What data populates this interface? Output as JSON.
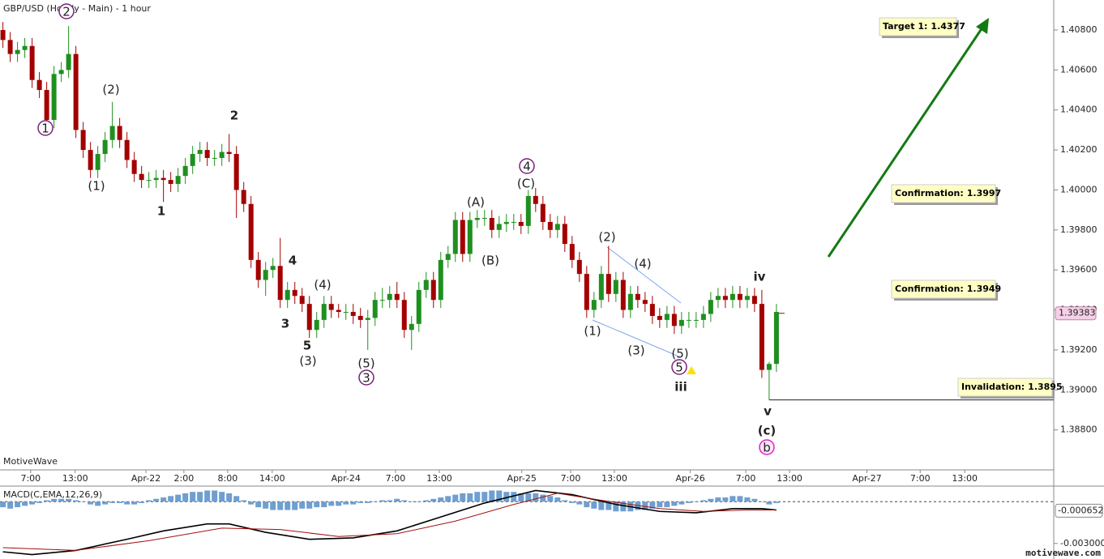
{
  "chart_data": {
    "type": "candlestick",
    "title": "GBP/USD (Hourly - Main) - 1 hour",
    "watermark": "MotiveWave",
    "site": "motivewave.com",
    "colors": {
      "up": "#1f8f1f",
      "down": "#a30000"
    },
    "candles": [
      [
        1.408,
        1.4084,
        1.4071,
        1.4075
      ],
      [
        1.4075,
        1.4079,
        1.4064,
        1.4068
      ],
      [
        1.4068,
        1.4074,
        1.4064,
        1.407
      ],
      [
        1.407,
        1.4076,
        1.4066,
        1.4072
      ],
      [
        1.4072,
        1.4076,
        1.4051,
        1.4055
      ],
      [
        1.4055,
        1.4059,
        1.4046,
        1.405
      ],
      [
        1.405,
        1.4054,
        1.4031,
        1.4035
      ],
      [
        1.4035,
        1.4062,
        1.4031,
        1.4058
      ],
      [
        1.4058,
        1.4064,
        1.4054,
        1.406
      ],
      [
        1.406,
        1.4082,
        1.4056,
        1.4068
      ],
      [
        1.4068,
        1.4072,
        1.4026,
        1.403
      ],
      [
        1.403,
        1.4034,
        1.4016,
        1.402
      ],
      [
        1.402,
        1.4024,
        1.4006,
        1.401
      ],
      [
        1.401,
        1.4022,
        1.4006,
        1.4018
      ],
      [
        1.4018,
        1.4029,
        1.4014,
        1.4025
      ],
      [
        1.4025,
        1.4044,
        1.4021,
        1.4032
      ],
      [
        1.4032,
        1.4036,
        1.4021,
        1.4025
      ],
      [
        1.4025,
        1.4029,
        1.4011,
        1.4015
      ],
      [
        1.4015,
        1.4019,
        1.4004,
        1.4008
      ],
      [
        1.4008,
        1.4012,
        1.4001,
        1.4005
      ],
      [
        1.4005,
        1.4009,
        1.4001,
        1.4005
      ],
      [
        1.4005,
        1.401,
        1.4001,
        1.4006
      ],
      [
        1.4006,
        1.401,
        1.3994,
        1.4005
      ],
      [
        1.4005,
        1.4009,
        1.3999,
        1.4003
      ],
      [
        1.4003,
        1.4011,
        1.3999,
        1.4007
      ],
      [
        1.4007,
        1.4016,
        1.4003,
        1.4012
      ],
      [
        1.4012,
        1.4022,
        1.4008,
        1.4018
      ],
      [
        1.4018,
        1.4024,
        1.4014,
        1.402
      ],
      [
        1.402,
        1.4024,
        1.4012,
        1.4016
      ],
      [
        1.4016,
        1.402,
        1.4012,
        1.4016
      ],
      [
        1.4016,
        1.4023,
        1.4012,
        1.4019
      ],
      [
        1.4019,
        1.4028,
        1.4014,
        1.4018
      ],
      [
        1.4018,
        1.4022,
        1.3986,
        1.4
      ],
      [
        1.4,
        1.4004,
        1.3989,
        1.3993
      ],
      [
        1.3993,
        1.3997,
        1.3961,
        1.3965
      ],
      [
        1.3965,
        1.3969,
        1.3951,
        1.3955
      ],
      [
        1.3955,
        1.3964,
        1.3947,
        1.396
      ],
      [
        1.396,
        1.3966,
        1.3956,
        1.3962
      ],
      [
        1.3962,
        1.3976,
        1.3941,
        1.3945
      ],
      [
        1.3945,
        1.3954,
        1.3941,
        1.395
      ],
      [
        1.395,
        1.3954,
        1.3943,
        1.3947
      ],
      [
        1.3947,
        1.3951,
        1.3939,
        1.3943
      ],
      [
        1.3943,
        1.3947,
        1.3926,
        1.393
      ],
      [
        1.393,
        1.3939,
        1.3926,
        1.3935
      ],
      [
        1.3935,
        1.3947,
        1.3931,
        1.3943
      ],
      [
        1.3943,
        1.3947,
        1.3936,
        1.394
      ],
      [
        1.394,
        1.3943,
        1.3936,
        1.3939
      ],
      [
        1.3939,
        1.3943,
        1.3935,
        1.3939
      ],
      [
        1.3939,
        1.3943,
        1.3933,
        1.3937
      ],
      [
        1.3937,
        1.3941,
        1.3931,
        1.3935
      ],
      [
        1.3935,
        1.394,
        1.392,
        1.3936
      ],
      [
        1.3936,
        1.3949,
        1.3932,
        1.3945
      ],
      [
        1.3945,
        1.3951,
        1.3941,
        1.3945
      ],
      [
        1.3945,
        1.3952,
        1.3941,
        1.3948
      ],
      [
        1.3948,
        1.3954,
        1.3941,
        1.3945
      ],
      [
        1.3945,
        1.3949,
        1.3926,
        1.393
      ],
      [
        1.393,
        1.3937,
        1.392,
        1.3933
      ],
      [
        1.3933,
        1.3954,
        1.3929,
        1.395
      ],
      [
        1.395,
        1.3959,
        1.3946,
        1.3955
      ],
      [
        1.3955,
        1.3959,
        1.3941,
        1.3945
      ],
      [
        1.3945,
        1.3969,
        1.3941,
        1.3965
      ],
      [
        1.3965,
        1.3972,
        1.3961,
        1.3968
      ],
      [
        1.3968,
        1.3989,
        1.3964,
        1.3985
      ],
      [
        1.3985,
        1.3989,
        1.3964,
        1.3968
      ],
      [
        1.3968,
        1.3989,
        1.3964,
        1.3985
      ],
      [
        1.3985,
        1.399,
        1.3981,
        1.3986
      ],
      [
        1.3986,
        1.399,
        1.3982,
        1.3986
      ],
      [
        1.3986,
        1.399,
        1.3976,
        1.398
      ],
      [
        1.398,
        1.3987,
        1.3976,
        1.3983
      ],
      [
        1.3983,
        1.3988,
        1.3979,
        1.3984
      ],
      [
        1.3984,
        1.3988,
        1.398,
        1.3984
      ],
      [
        1.3984,
        1.3988,
        1.3978,
        1.3982
      ],
      [
        1.3982,
        1.4,
        1.3978,
        1.3997
      ],
      [
        1.3997,
        1.4001,
        1.3989,
        1.3993
      ],
      [
        1.3993,
        1.3997,
        1.398,
        1.3984
      ],
      [
        1.3984,
        1.3988,
        1.3976,
        1.398
      ],
      [
        1.398,
        1.3987,
        1.3976,
        1.3983
      ],
      [
        1.3983,
        1.3987,
        1.3969,
        1.3973
      ],
      [
        1.3973,
        1.3977,
        1.3961,
        1.3965
      ],
      [
        1.3965,
        1.3969,
        1.3954,
        1.3958
      ],
      [
        1.3958,
        1.3962,
        1.3936,
        1.394
      ],
      [
        1.394,
        1.3949,
        1.3936,
        1.3945
      ],
      [
        1.3945,
        1.3962,
        1.3941,
        1.3958
      ],
      [
        1.3958,
        1.3972,
        1.3944,
        1.3948
      ],
      [
        1.3948,
        1.3959,
        1.3944,
        1.3955
      ],
      [
        1.3955,
        1.3959,
        1.3936,
        1.394
      ],
      [
        1.394,
        1.3952,
        1.3936,
        1.3948
      ],
      [
        1.3948,
        1.3952,
        1.3941,
        1.3945
      ],
      [
        1.3945,
        1.3949,
        1.3939,
        1.3943
      ],
      [
        1.3943,
        1.3947,
        1.3933,
        1.3937
      ],
      [
        1.3937,
        1.3941,
        1.3931,
        1.3935
      ],
      [
        1.3935,
        1.3942,
        1.3931,
        1.3938
      ],
      [
        1.3938,
        1.3942,
        1.3928,
        1.3932
      ],
      [
        1.3932,
        1.3939,
        1.3928,
        1.3935
      ],
      [
        1.3935,
        1.3939,
        1.3931,
        1.3935
      ],
      [
        1.3935,
        1.3939,
        1.3931,
        1.3935
      ],
      [
        1.3935,
        1.3942,
        1.3931,
        1.3938
      ],
      [
        1.3938,
        1.3949,
        1.3934,
        1.3945
      ],
      [
        1.3945,
        1.3951,
        1.3941,
        1.3947
      ],
      [
        1.3947,
        1.3951,
        1.3941,
        1.3945
      ],
      [
        1.3945,
        1.3952,
        1.3941,
        1.3948
      ],
      [
        1.3948,
        1.3952,
        1.3941,
        1.3945
      ],
      [
        1.3945,
        1.3951,
        1.3941,
        1.3947
      ],
      [
        1.3947,
        1.3951,
        1.3939,
        1.3943
      ],
      [
        1.3943,
        1.395,
        1.3906,
        1.391
      ],
      [
        1.391,
        1.3914,
        1.3895,
        1.3913
      ],
      [
        1.3913,
        1.3943,
        1.3909,
        1.3939
      ]
    ],
    "xlim": [
      -0.4,
      144
    ],
    "xticks": [
      {
        "value": 3.8,
        "label": "7:00"
      },
      {
        "value": 9.9,
        "label": "13:00"
      },
      {
        "value": 19.6,
        "label": "Apr-22"
      },
      {
        "value": 24.8,
        "label": "2:00"
      },
      {
        "value": 30.8,
        "label": "8:00"
      },
      {
        "value": 36.9,
        "label": "14:00"
      },
      {
        "value": 47,
        "label": "Apr-24"
      },
      {
        "value": 53.8,
        "label": "7:00"
      },
      {
        "value": 59.8,
        "label": "13:00"
      },
      {
        "value": 71.1,
        "label": "Apr-25"
      },
      {
        "value": 77.8,
        "label": "7:00"
      },
      {
        "value": 83.8,
        "label": "13:00"
      },
      {
        "value": 94.2,
        "label": "Apr-26"
      },
      {
        "value": 101.8,
        "label": "7:00"
      },
      {
        "value": 107.8,
        "label": "13:00"
      },
      {
        "value": 118.4,
        "label": "Apr-27"
      },
      {
        "value": 125.7,
        "label": "7:00"
      },
      {
        "value": 131.8,
        "label": "13:00"
      }
    ],
    "ylim": [
      1.386,
      1.4095
    ],
    "yticks": [
      {
        "value": 1.388,
        "label": "1.38800"
      },
      {
        "value": 1.39,
        "label": "1.39000"
      },
      {
        "value": 1.392,
        "label": "1.39200"
      },
      {
        "value": 1.394,
        "label": "1.39400"
      },
      {
        "value": 1.396,
        "label": "1.39600"
      },
      {
        "value": 1.398,
        "label": "1.39800"
      },
      {
        "value": 1.4,
        "label": "1.40000"
      },
      {
        "value": 1.402,
        "label": "1.40200"
      },
      {
        "value": 1.404,
        "label": "1.40400"
      },
      {
        "value": 1.406,
        "label": "1.40600"
      },
      {
        "value": 1.408,
        "label": "1.40800"
      }
    ],
    "last_price": 1.39383,
    "annotations": [
      {
        "text": "2",
        "color": "#7a1f7a",
        "circled": true
      },
      {
        "text": "1",
        "color": "#7a1f7a",
        "circled": true
      },
      {
        "text": "3",
        "color": "#7a1f7a",
        "circled": true
      },
      {
        "text": "4",
        "color": "#7a1f7a",
        "circled": true
      },
      {
        "text": "5",
        "color": "#7a1f7a",
        "circled": true
      },
      {
        "text": "(2)",
        "color": "#3b6fdc"
      },
      {
        "text": "(1)",
        "color": "#3b6fdc"
      },
      {
        "text": "(4)",
        "color": "#3b6fdc"
      },
      {
        "text": "(3)",
        "color": "#3b6fdc"
      },
      {
        "text": "(5)",
        "color": "#3b6fdc"
      },
      {
        "text": "(A)",
        "color": "#3b6fdc"
      },
      {
        "text": "(C)",
        "color": "#3b6fdc"
      },
      {
        "text": "(B)",
        "color": "#3b6fdc"
      },
      {
        "text": "(2)",
        "color": "#3b6fdc"
      },
      {
        "text": "(4)",
        "color": "#3b6fdc"
      },
      {
        "text": "(1)",
        "color": "#3b6fdc"
      },
      {
        "text": "(3)",
        "color": "#3b6fdc"
      },
      {
        "text": "(5)",
        "color": "#3b6fdc"
      },
      {
        "text": "2",
        "color": "#e01515"
      },
      {
        "text": "1",
        "color": "#e01515"
      },
      {
        "text": "4",
        "color": "#e01515"
      },
      {
        "text": "3",
        "color": "#e01515"
      },
      {
        "text": "5",
        "color": "#e01515"
      },
      {
        "text": "iv",
        "color": "#e07a10"
      },
      {
        "text": "iii",
        "color": "#e07a10"
      },
      {
        "text": "v",
        "color": "#e07a10"
      },
      {
        "text": "(c)",
        "color": "#1a8a1a"
      },
      {
        "text": "b",
        "color": "#e020c8",
        "circled": true
      }
    ],
    "levels": [
      {
        "label": "Target 1:",
        "value": 1.4377
      },
      {
        "label": "Confirmation:",
        "value": 1.3997
      },
      {
        "label": "Confirmation:",
        "value": 1.3949
      },
      {
        "label": "Invalidation:",
        "value": 1.3895
      }
    ],
    "macd": {
      "title": "MACD(C,EMA,12,26,9)",
      "ylim": [
        -0.004,
        0.001
      ],
      "yticks": [
        {
          "value": -0.003,
          "label": "-0.003000"
        }
      ],
      "last_value": -0.000652,
      "histogram_color": "#6f9fcf",
      "histogram": [
        -0.0004,
        -0.0005,
        -0.0004,
        -0.0003,
        -0.0002,
        -0.0001,
        0.0001,
        0.0002,
        0.0002,
        0.0002,
        0.0001,
        0.0,
        -0.0002,
        -0.0003,
        -0.0002,
        -0.0001,
        -0.0001,
        -0.0002,
        -0.0002,
        -0.0001,
        0.0001,
        0.0002,
        0.0003,
        0.0004,
        0.0005,
        0.0006,
        0.0007,
        0.0007,
        0.0008,
        0.0008,
        0.0007,
        0.0006,
        0.0004,
        0.0001,
        -0.0002,
        -0.0004,
        -0.0005,
        -0.0006,
        -0.0006,
        -0.0006,
        -0.0006,
        -0.0005,
        -0.0005,
        -0.0004,
        -0.0004,
        -0.0003,
        -0.0003,
        -0.0002,
        -0.0002,
        -0.0001,
        -0.0001,
        0.0,
        0.0001,
        0.0001,
        0.0002,
        0.0001,
        0.0,
        0.0,
        0.0001,
        0.0002,
        0.0003,
        0.0004,
        0.0005,
        0.0006,
        0.0006,
        0.0007,
        0.0007,
        0.0008,
        0.0008,
        0.0007,
        0.0007,
        0.0006,
        0.0006,
        0.0006,
        0.0005,
        0.0004,
        0.0003,
        0.0001,
        -0.0001,
        -0.0002,
        -0.0004,
        -0.0005,
        -0.0006,
        -0.0006,
        -0.0007,
        -0.0007,
        -0.0007,
        -0.0006,
        -0.0006,
        -0.0005,
        -0.0004,
        -0.0004,
        -0.0003,
        -0.0002,
        -0.0001,
        0.0,
        0.0001,
        0.0002,
        0.0003,
        0.0003,
        0.0004,
        0.0004,
        0.0003,
        0.0002,
        0.0,
        -0.0002,
        -0.0001
      ],
      "lines": [
        {
          "color": "#000000",
          "x": [
            0,
            4,
            10,
            17,
            22,
            28,
            31,
            36,
            42,
            48,
            54,
            60,
            66,
            73,
            78,
            84,
            90,
            95,
            100,
            104,
            106
          ],
          "values": [
            -0.0036,
            -0.0038,
            -0.0035,
            -0.0027,
            -0.0021,
            -0.0016,
            -0.0016,
            -0.0022,
            -0.0027,
            -0.0026,
            -0.0021,
            -0.0011,
            -0.0001,
            0.0008,
            0.0005,
            -0.0002,
            -0.0007,
            -0.0008,
            -0.0005,
            -0.0005,
            -0.0006
          ]
        },
        {
          "color": "#a01010",
          "x": [
            0,
            10,
            20,
            30,
            38,
            46,
            54,
            62,
            70,
            76,
            82,
            90,
            96,
            102,
            106
          ],
          "values": [
            -0.0033,
            -0.0035,
            -0.0028,
            -0.0019,
            -0.002,
            -0.0025,
            -0.0023,
            -0.0014,
            -0.0002,
            0.0006,
            0.0001,
            -0.0005,
            -0.0007,
            -0.0006,
            -0.0006
          ]
        }
      ]
    }
  }
}
